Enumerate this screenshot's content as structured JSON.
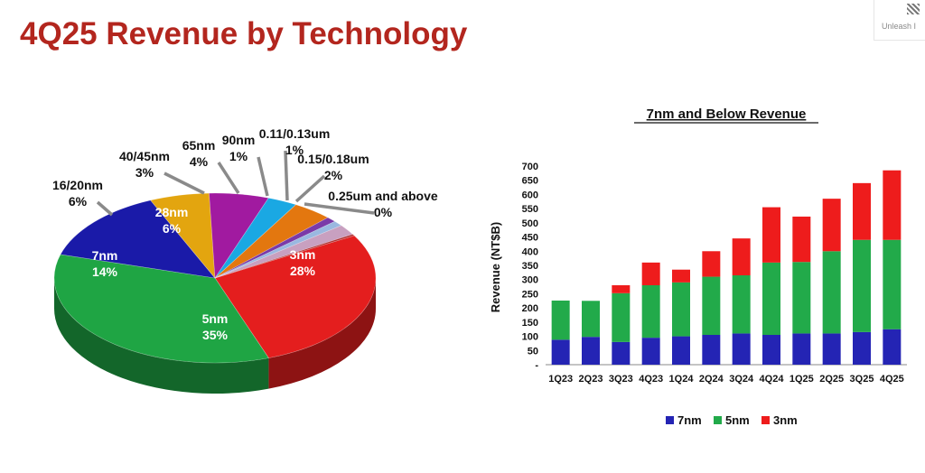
{
  "page": {
    "title": "4Q25 Revenue by Technology",
    "brand_text": "Unleash I"
  },
  "chart_data": [
    {
      "type": "pie",
      "title": "",
      "slices": [
        {
          "label": "3nm",
          "value_label": "28%",
          "value": 28,
          "color": "#e41e1e"
        },
        {
          "label": "5nm",
          "value_label": "35%",
          "value": 35,
          "color": "#1fa544"
        },
        {
          "label": "7nm",
          "value_label": "14%",
          "value": 14,
          "color": "#1a1aa8"
        },
        {
          "label": "16/20nm",
          "value_label": "6%",
          "value": 6,
          "color": "#e3a50f"
        },
        {
          "label": "28nm",
          "value_label": "6%",
          "value": 6,
          "color": "#a11aa0"
        },
        {
          "label": "40/45nm",
          "value_label": "3%",
          "value": 3,
          "color": "#1aa8e3"
        },
        {
          "label": "65nm",
          "value_label": "4%",
          "value": 4,
          "color": "#e3770f"
        },
        {
          "label": "90nm",
          "value_label": "1%",
          "value": 1,
          "color": "#7a3aa8"
        },
        {
          "label": "0.11/0.13um",
          "value_label": "1%",
          "value": 1,
          "color": "#9ab8e0"
        },
        {
          "label": "0.15/0.18um",
          "value_label": "2%",
          "value": 2,
          "color": "#c8a0c0"
        },
        {
          "label": "0.25um and above",
          "value_label": "0%",
          "value": 0.3,
          "color": "#b03030"
        }
      ]
    },
    {
      "type": "bar",
      "stacked": true,
      "title": "7nm and Below Revenue",
      "ylabel": "Revenue (NT$B)",
      "xlabel": "",
      "ylim": [
        0,
        700
      ],
      "yticks": [
        "-",
        "50",
        "100",
        "150",
        "200",
        "250",
        "300",
        "350",
        "400",
        "450",
        "500",
        "550",
        "600",
        "650",
        "700"
      ],
      "categories": [
        "1Q23",
        "2Q23",
        "3Q23",
        "4Q23",
        "1Q24",
        "2Q24",
        "3Q24",
        "4Q24",
        "1Q25",
        "2Q25",
        "3Q25",
        "4Q25"
      ],
      "series": [
        {
          "name": "7nm",
          "color": "#2424b4",
          "values": [
            88,
            98,
            80,
            95,
            100,
            105,
            110,
            105,
            110,
            110,
            115,
            125
          ]
        },
        {
          "name": "5nm",
          "color": "#22aa4a",
          "values": [
            138,
            127,
            172,
            185,
            190,
            205,
            205,
            255,
            252,
            290,
            325,
            315
          ]
        },
        {
          "name": "3nm",
          "color": "#ee1c1c",
          "values": [
            0,
            0,
            28,
            80,
            45,
            90,
            130,
            195,
            160,
            185,
            200,
            245
          ]
        }
      ],
      "legend": "bottom",
      "grid": false
    }
  ]
}
